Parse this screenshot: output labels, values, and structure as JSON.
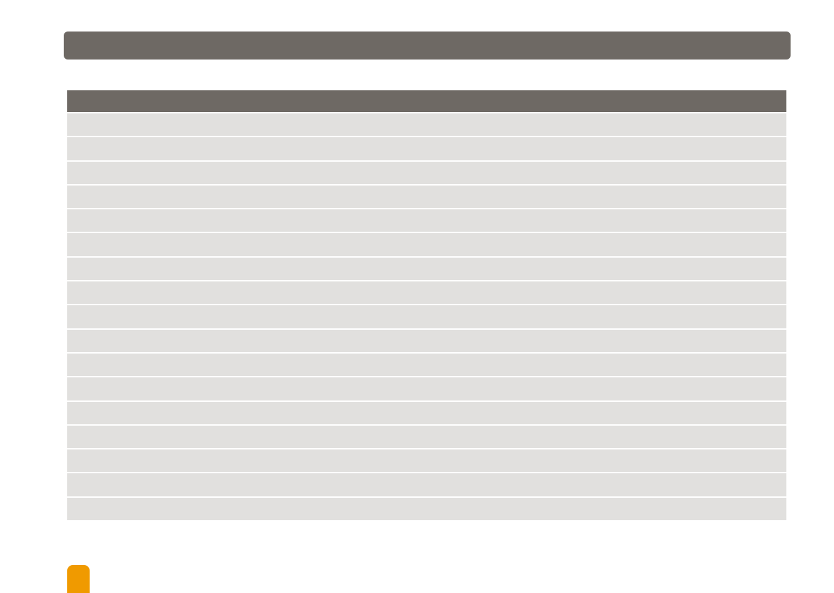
{
  "colors": {
    "header": "#6e6964",
    "row": "#e1e0de",
    "accent": "#f09a00"
  },
  "table": {
    "header": "",
    "row_count": 17
  }
}
